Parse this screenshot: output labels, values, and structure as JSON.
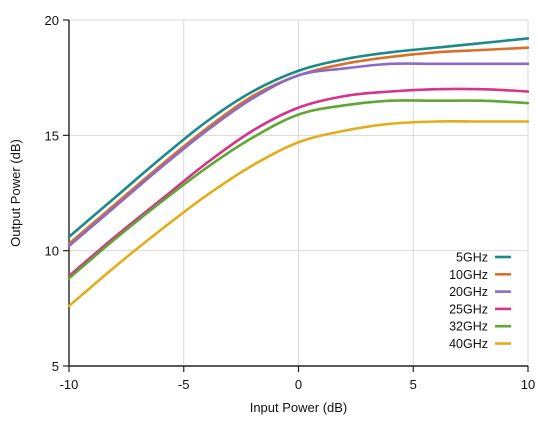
{
  "chart_data": {
    "type": "line",
    "xlabel": "Input Power (dB)",
    "ylabel": "Output Power (dB)",
    "xlim": [
      -10,
      10
    ],
    "ylim": [
      5,
      20
    ],
    "xticks": [
      -10,
      -5,
      0,
      5,
      10
    ],
    "yticks": [
      5,
      10,
      15,
      20
    ],
    "x_tick_labels": [
      "-10",
      "-5",
      "0",
      "5",
      "10"
    ],
    "y_tick_labels": [
      "5",
      "10",
      "15",
      "20"
    ],
    "grid": true,
    "legend_position": "bottom-right",
    "x": [
      -10,
      -8,
      -6,
      -4,
      -2,
      0,
      2,
      4,
      6,
      8,
      10
    ],
    "series": [
      {
        "name": "5GHz",
        "color": "#1a8a8a",
        "values": [
          10.6,
          12.3,
          14.0,
          15.6,
          16.9,
          17.8,
          18.3,
          18.6,
          18.8,
          19.0,
          19.2
        ]
      },
      {
        "name": "10GHz",
        "color": "#d96f2b",
        "values": [
          10.3,
          12.0,
          13.7,
          15.3,
          16.7,
          17.6,
          18.1,
          18.4,
          18.6,
          18.7,
          18.8
        ]
      },
      {
        "name": "20GHz",
        "color": "#8a6cc7",
        "values": [
          10.2,
          11.9,
          13.6,
          15.2,
          16.6,
          17.6,
          17.9,
          18.1,
          18.1,
          18.1,
          18.1
        ]
      },
      {
        "name": "25GHz",
        "color": "#d6338a",
        "values": [
          8.9,
          10.6,
          12.2,
          13.8,
          15.2,
          16.2,
          16.7,
          16.9,
          17.0,
          17.0,
          16.9
        ]
      },
      {
        "name": "32GHz",
        "color": "#5ea832",
        "values": [
          8.8,
          10.5,
          12.1,
          13.6,
          14.9,
          15.9,
          16.3,
          16.5,
          16.5,
          16.5,
          16.4
        ]
      },
      {
        "name": "40GHz",
        "color": "#e3ad1a",
        "values": [
          7.6,
          9.3,
          10.9,
          12.4,
          13.7,
          14.7,
          15.2,
          15.5,
          15.6,
          15.6,
          15.6
        ]
      }
    ]
  }
}
